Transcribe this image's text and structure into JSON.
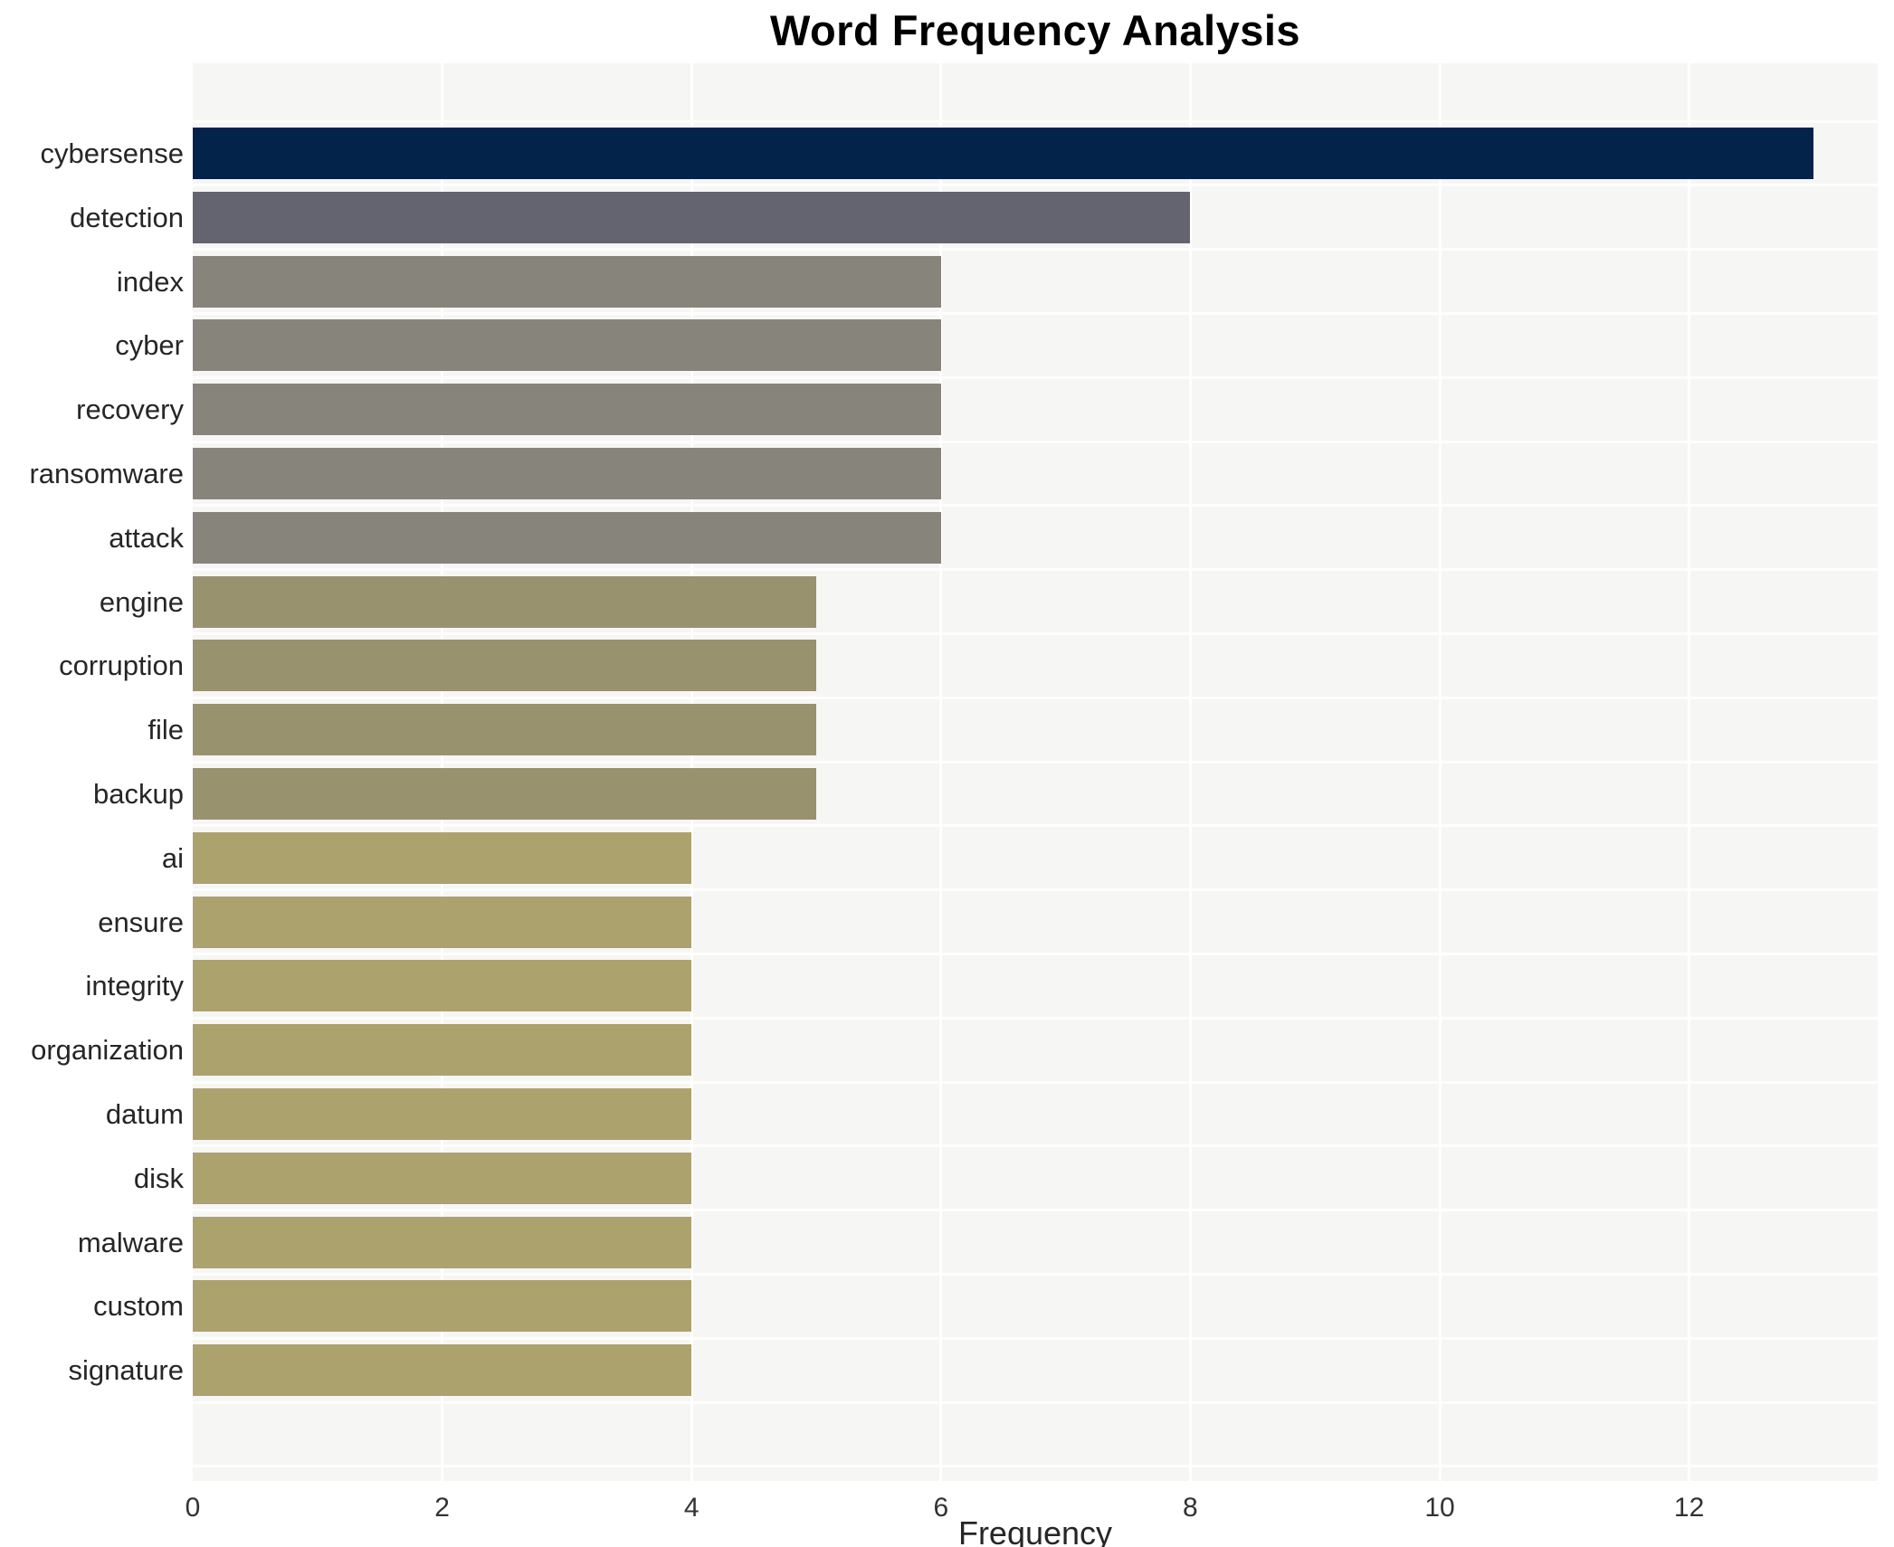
{
  "title": "Word Frequency Analysis",
  "chart_data": {
    "type": "bar",
    "orientation": "horizontal",
    "title": "Word Frequency Analysis",
    "xlabel": "Frequency",
    "ylabel": "",
    "categories": [
      "cybersense",
      "detection",
      "index",
      "cyber",
      "recovery",
      "ransomware",
      "attack",
      "engine",
      "corruption",
      "file",
      "backup",
      "ai",
      "ensure",
      "integrity",
      "organization",
      "datum",
      "disk",
      "malware",
      "custom",
      "signature"
    ],
    "values": [
      13,
      8,
      6,
      6,
      6,
      6,
      6,
      5,
      5,
      5,
      5,
      4,
      4,
      4,
      4,
      4,
      4,
      4,
      4,
      4
    ],
    "bar_colors": [
      "#04234b",
      "#646471",
      "#87847c",
      "#87847c",
      "#87847c",
      "#87847c",
      "#87847c",
      "#99926f",
      "#99926f",
      "#99926f",
      "#99926f",
      "#aca26e",
      "#aca26e",
      "#aca26e",
      "#aca26e",
      "#aca26e",
      "#aca26e",
      "#aca26e",
      "#aca26e",
      "#aca26e"
    ],
    "xticks": [
      0,
      2,
      4,
      6,
      8,
      10,
      12
    ],
    "xlim": [
      0,
      13.5
    ],
    "grid": "white vertical lines at major x ticks and white horizontal lines between category rows, on light gray panel",
    "legend_position": "none",
    "panel_bg": "#f6f6f5",
    "gridline_color": "#ffffff",
    "label_color": "#262626",
    "tick_color": "#333333"
  }
}
